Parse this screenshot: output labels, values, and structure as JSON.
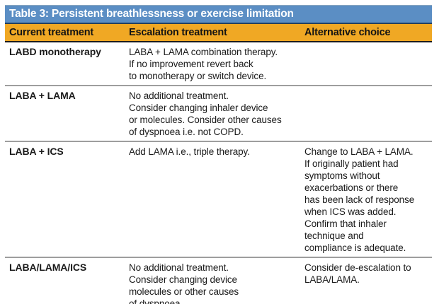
{
  "table": {
    "title": "Table 3: Persistent breathlessness or exercise limitation",
    "columns": [
      "Current treatment",
      "Escalation treatment",
      "Alternative choice"
    ],
    "rows": [
      {
        "current": "LABD monotherapy",
        "escalation": "LABA + LAMA combination therapy.\nIf no improvement revert back\nto monotherapy or switch device.",
        "alternative": ""
      },
      {
        "current": "LABA + LAMA",
        "escalation": "No additional treatment.\nConsider changing inhaler device\nor molecules. Consider other causes\nof dyspnoea i.e. not COPD.",
        "alternative": ""
      },
      {
        "current": "LABA + ICS",
        "escalation": "Add LAMA i.e., triple therapy.",
        "alternative": "Change to LABA + LAMA.\nIf originally patient had\nsymptoms without\nexacerbations or there\nhas been lack of response\nwhen ICS was added.\nConfirm that inhaler\ntechnique and\ncompliance is adequate."
      },
      {
        "current": "LABA/LAMA/ICS",
        "escalation": "No additional treatment.\nConsider changing device\nmolecules or other causes\nof dyspnoea.",
        "alternative": "Consider de-escalation to\nLABA/LAMA."
      }
    ],
    "colors": {
      "title_bg": "#5b8ec4",
      "title_text": "#ffffff",
      "header_bg": "#f0a824",
      "header_text": "#141414",
      "navy_rule": "#24405f",
      "black_rule": "#1c1c1c",
      "row_divider": "#9e9e9e",
      "bottom_rule": "#2e2e2e",
      "body_text": "#1a1a1a"
    }
  }
}
